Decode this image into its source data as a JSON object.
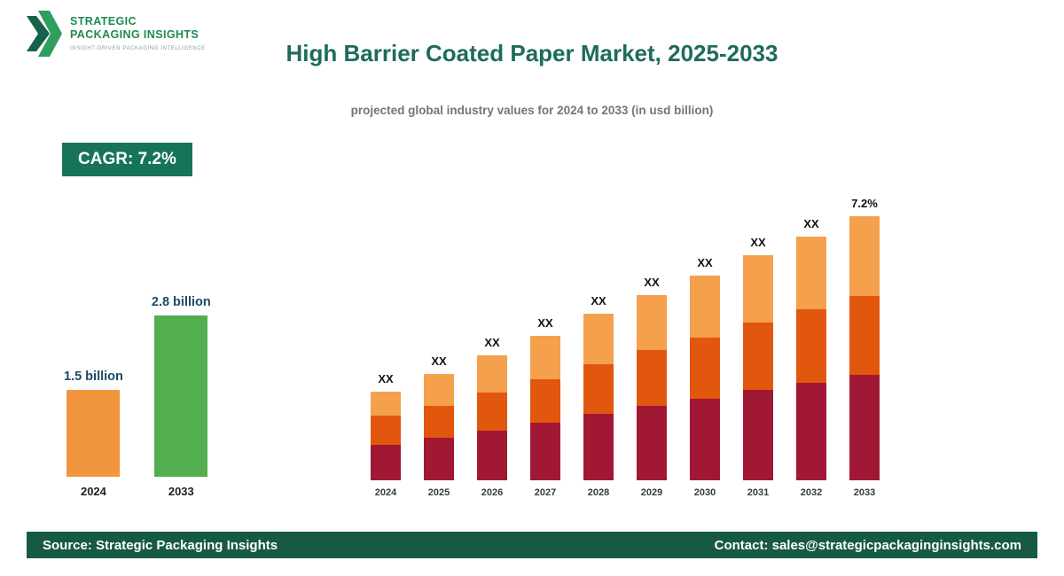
{
  "logo": {
    "name_line1": "STRATEGIC",
    "name_line2": "PACKAGING INSIGHTS",
    "tagline": "INSIGHT-DRIVEN PACKAGING INTELLIGENCE"
  },
  "header": {
    "title": "High Barrier Coated Paper Market, 2025-2033",
    "subtitle": "projected global industry values for 2024 to 2033 (in usd billion)"
  },
  "badge": {
    "label": "CAGR: 7.2%"
  },
  "footer": {
    "source": "Source: Strategic Packaging Insights",
    "contact": "Contact: sales@strategicpackaginginsights.com"
  },
  "colors": {
    "title": "#1d6b5e",
    "badge_bg": "#17745b",
    "footer_bg": "#165a42",
    "logo_green": "#1e8a50",
    "value_label": "#1e4a66",
    "bar_red": "#A11835",
    "bar_orange_dark": "#E2570E",
    "bar_orange_light": "#F5A04C",
    "bar_green": "#53AE4F"
  },
  "chart_data": [
    {
      "type": "bar",
      "name": "market-size-comparison",
      "categories": [
        "2024",
        "2033"
      ],
      "values": [
        1.5,
        2.8
      ],
      "value_labels": [
        "1.5 billion",
        "2.8 billion"
      ],
      "bar_colors": [
        "#F2953F",
        "#53AE4F"
      ],
      "unit": "usd billion",
      "grid": false,
      "legend": false
    },
    {
      "type": "bar",
      "subtype": "stacked",
      "name": "projected-values-2024-2033",
      "categories": [
        "2024",
        "2025",
        "2026",
        "2027",
        "2028",
        "2029",
        "2030",
        "2031",
        "2032",
        "2033"
      ],
      "bar_labels": [
        "XX",
        "XX",
        "XX",
        "XX",
        "XX",
        "XX",
        "XX",
        "XX",
        "XX",
        "7.2%"
      ],
      "series": [
        {
          "name": "segment-bottom",
          "color": "#A11835",
          "values": [
            40,
            48,
            56,
            65,
            75,
            84,
            92,
            102,
            110,
            119
          ]
        },
        {
          "name": "segment-middle",
          "color": "#E2570E",
          "values": [
            33,
            36,
            43,
            49,
            56,
            63,
            69,
            76,
            83,
            89
          ]
        },
        {
          "name": "segment-top",
          "color": "#F5A04C",
          "values": [
            27,
            36,
            42,
            49,
            57,
            62,
            70,
            76,
            82,
            90
          ]
        }
      ],
      "grid": false,
      "legend": false
    }
  ]
}
